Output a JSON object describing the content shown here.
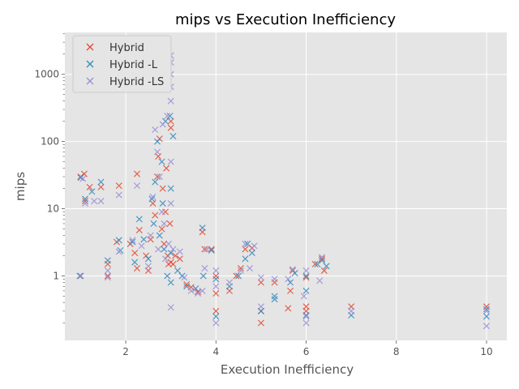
{
  "chart_data": {
    "type": "scatter",
    "title": "mips vs Execution Inefficiency",
    "xlabel": "Execution Inefficiency",
    "ylabel": "mips",
    "xlim": [
      0.65,
      10.45
    ],
    "ylim": [
      0.11,
      4200
    ],
    "yscale": "log",
    "xticks": [
      2,
      4,
      6,
      8,
      10
    ],
    "xtick_labels": [
      "2",
      "4",
      "6",
      "8",
      "10"
    ],
    "yticks": [
      1,
      10,
      100,
      1000
    ],
    "ytick_labels": [
      "1",
      "10",
      "100",
      "1000"
    ],
    "grid": true,
    "legend_position": "top-left",
    "series": [
      {
        "name": "Hybrid",
        "color": "#E24A33",
        "points": [
          [
            1.0,
            1.0
          ],
          [
            1.0,
            30
          ],
          [
            1.08,
            33
          ],
          [
            1.1,
            13
          ],
          [
            1.2,
            21
          ],
          [
            1.45,
            21
          ],
          [
            1.6,
            1.5
          ],
          [
            1.6,
            1.0
          ],
          [
            1.8,
            3.2
          ],
          [
            1.85,
            22
          ],
          [
            2.1,
            3.0
          ],
          [
            2.2,
            2.2
          ],
          [
            2.25,
            1.3
          ],
          [
            2.25,
            33
          ],
          [
            2.3,
            4.8
          ],
          [
            2.45,
            2.0
          ],
          [
            2.5,
            1.2
          ],
          [
            2.55,
            3.5
          ],
          [
            2.6,
            12
          ],
          [
            2.65,
            8.0
          ],
          [
            2.7,
            30
          ],
          [
            2.72,
            60
          ],
          [
            2.75,
            110
          ],
          [
            2.8,
            5.0
          ],
          [
            2.82,
            20
          ],
          [
            2.85,
            3.0
          ],
          [
            2.88,
            9.0
          ],
          [
            2.9,
            40
          ],
          [
            2.93,
            2.0
          ],
          [
            2.95,
            1.5
          ],
          [
            2.98,
            6.0
          ],
          [
            3.0,
            160
          ],
          [
            3.0,
            200
          ],
          [
            3.0,
            1.6
          ],
          [
            3.05,
            1.5
          ],
          [
            3.1,
            2.0
          ],
          [
            3.2,
            1.8
          ],
          [
            3.35,
            0.75
          ],
          [
            3.45,
            0.68
          ],
          [
            3.6,
            0.58
          ],
          [
            3.7,
            4.5
          ],
          [
            3.75,
            2.5
          ],
          [
            3.9,
            2.5
          ],
          [
            4.0,
            0.55
          ],
          [
            4.0,
            0.3
          ],
          [
            4.0,
            1.0
          ],
          [
            4.3,
            0.6
          ],
          [
            4.45,
            1.0
          ],
          [
            4.55,
            1.3
          ],
          [
            4.65,
            2.5
          ],
          [
            4.8,
            2.6
          ],
          [
            5.0,
            0.8
          ],
          [
            5.0,
            0.2
          ],
          [
            5.0,
            0.3
          ],
          [
            5.3,
            0.8
          ],
          [
            5.6,
            0.33
          ],
          [
            5.65,
            0.6
          ],
          [
            5.7,
            1.2
          ],
          [
            6.0,
            0.95
          ],
          [
            6.0,
            0.3
          ],
          [
            6.0,
            0.35
          ],
          [
            6.2,
            1.5
          ],
          [
            6.35,
            1.8
          ],
          [
            6.4,
            1.2
          ],
          [
            7.0,
            0.35
          ],
          [
            10.0,
            0.35
          ]
        ]
      },
      {
        "name": "Hybrid -L",
        "color": "#348ABD",
        "points": [
          [
            0.98,
            1.0
          ],
          [
            1.0,
            29
          ],
          [
            1.1,
            14
          ],
          [
            1.25,
            18
          ],
          [
            1.45,
            25
          ],
          [
            1.6,
            1.7
          ],
          [
            1.85,
            3.4
          ],
          [
            1.88,
            2.4
          ],
          [
            2.15,
            3.2
          ],
          [
            2.2,
            1.6
          ],
          [
            2.3,
            7.0
          ],
          [
            2.4,
            3.5
          ],
          [
            2.5,
            1.8
          ],
          [
            2.58,
            14
          ],
          [
            2.62,
            6.0
          ],
          [
            2.65,
            25
          ],
          [
            2.7,
            100
          ],
          [
            2.75,
            4.0
          ],
          [
            2.8,
            50
          ],
          [
            2.82,
            12
          ],
          [
            2.85,
            2.5
          ],
          [
            2.88,
            200
          ],
          [
            2.92,
            1.0
          ],
          [
            2.98,
            240
          ],
          [
            3.0,
            0.8
          ],
          [
            3.0,
            20
          ],
          [
            3.0,
            2.2
          ],
          [
            3.05,
            120
          ],
          [
            3.15,
            1.2
          ],
          [
            3.25,
            1.0
          ],
          [
            3.35,
            0.7
          ],
          [
            3.55,
            0.65
          ],
          [
            3.7,
            5.2
          ],
          [
            3.72,
            1.0
          ],
          [
            3.9,
            2.4
          ],
          [
            4.0,
            0.25
          ],
          [
            4.0,
            0.9
          ],
          [
            4.3,
            0.7
          ],
          [
            4.5,
            1.0
          ],
          [
            4.65,
            1.8
          ],
          [
            4.7,
            3.0
          ],
          [
            4.8,
            2.2
          ],
          [
            5.0,
            0.3
          ],
          [
            5.3,
            0.45
          ],
          [
            5.3,
            0.5
          ],
          [
            5.65,
            0.8
          ],
          [
            5.75,
            1.1
          ],
          [
            6.0,
            0.26
          ],
          [
            6.0,
            0.6
          ],
          [
            6.0,
            1.0
          ],
          [
            6.25,
            1.5
          ],
          [
            6.35,
            1.7
          ],
          [
            6.45,
            1.4
          ],
          [
            7.0,
            0.26
          ],
          [
            10.0,
            0.32
          ],
          [
            10.0,
            0.25
          ]
        ]
      },
      {
        "name": "Hybrid -LS",
        "color": "#988ED5",
        "points": [
          [
            1.0,
            1.0
          ],
          [
            1.05,
            28
          ],
          [
            1.1,
            12
          ],
          [
            1.3,
            13
          ],
          [
            1.45,
            13
          ],
          [
            1.6,
            0.95
          ],
          [
            1.6,
            1.2
          ],
          [
            1.85,
            16
          ],
          [
            1.85,
            2.3
          ],
          [
            2.15,
            3.4
          ],
          [
            2.25,
            22
          ],
          [
            2.35,
            2.8
          ],
          [
            2.5,
            1.4
          ],
          [
            2.55,
            4.0
          ],
          [
            2.6,
            15
          ],
          [
            2.65,
            150
          ],
          [
            2.7,
            70
          ],
          [
            2.72,
            2.5
          ],
          [
            2.75,
            30
          ],
          [
            2.8,
            9.0
          ],
          [
            2.82,
            180
          ],
          [
            2.85,
            6.0
          ],
          [
            2.88,
            1.8
          ],
          [
            2.92,
            240
          ],
          [
            2.95,
            3.0
          ],
          [
            3.0,
            1900
          ],
          [
            3.0,
            1500
          ],
          [
            3.0,
            1000
          ],
          [
            3.0,
            650
          ],
          [
            3.0,
            400
          ],
          [
            3.0,
            0.34
          ],
          [
            3.0,
            50
          ],
          [
            3.0,
            12
          ],
          [
            3.05,
            2.5
          ],
          [
            3.2,
            2.3
          ],
          [
            3.3,
            0.95
          ],
          [
            3.45,
            0.6
          ],
          [
            3.6,
            0.55
          ],
          [
            3.7,
            0.6
          ],
          [
            3.75,
            1.3
          ],
          [
            3.8,
            2.5
          ],
          [
            4.0,
            0.2
          ],
          [
            4.0,
            0.7
          ],
          [
            4.0,
            1.2
          ],
          [
            4.3,
            0.8
          ],
          [
            4.55,
            1.2
          ],
          [
            4.65,
            3.0
          ],
          [
            4.75,
            1.3
          ],
          [
            4.85,
            2.8
          ],
          [
            5.0,
            0.35
          ],
          [
            5.0,
            0.95
          ],
          [
            5.3,
            0.9
          ],
          [
            5.6,
            0.9
          ],
          [
            5.7,
            1.25
          ],
          [
            5.95,
            0.5
          ],
          [
            6.0,
            0.2
          ],
          [
            6.0,
            0.25
          ],
          [
            6.0,
            1.2
          ],
          [
            6.3,
            0.85
          ],
          [
            6.35,
            1.9
          ],
          [
            7.0,
            0.3
          ],
          [
            10.0,
            0.18
          ],
          [
            10.0,
            0.3
          ]
        ]
      }
    ]
  }
}
